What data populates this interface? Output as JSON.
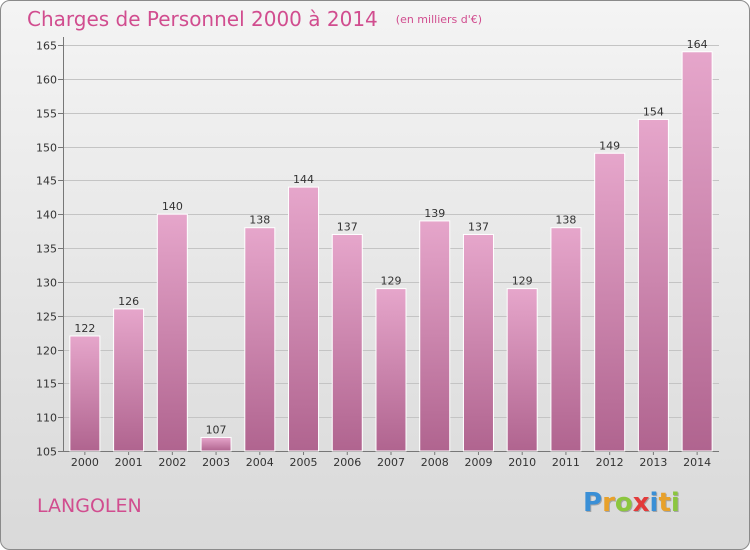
{
  "title": "Charges de Personnel 2000 à 2014",
  "unit": "(en milliers d'€)",
  "place": "LANGOLEN",
  "brand": {
    "letters": [
      "P",
      "r",
      "o",
      "x",
      "i",
      "t",
      "i"
    ],
    "colors": [
      "#3a8fd6",
      "#e8a12a",
      "#8cc63f",
      "#e23b3b",
      "#3a8fd6",
      "#e8a12a",
      "#8cc63f"
    ]
  },
  "chart_data": {
    "type": "bar",
    "categories": [
      "2000",
      "2001",
      "2002",
      "2003",
      "2004",
      "2005",
      "2006",
      "2007",
      "2008",
      "2009",
      "2010",
      "2011",
      "2012",
      "2013",
      "2014"
    ],
    "values": [
      122,
      126,
      140,
      107,
      138,
      144,
      137,
      129,
      139,
      137,
      129,
      138,
      149,
      154,
      164
    ],
    "ylim": [
      105,
      165
    ],
    "yticks": [
      105,
      110,
      115,
      120,
      125,
      130,
      135,
      140,
      145,
      150,
      155,
      160,
      165
    ],
    "grid": true,
    "bar_color": "#d97fb0"
  }
}
